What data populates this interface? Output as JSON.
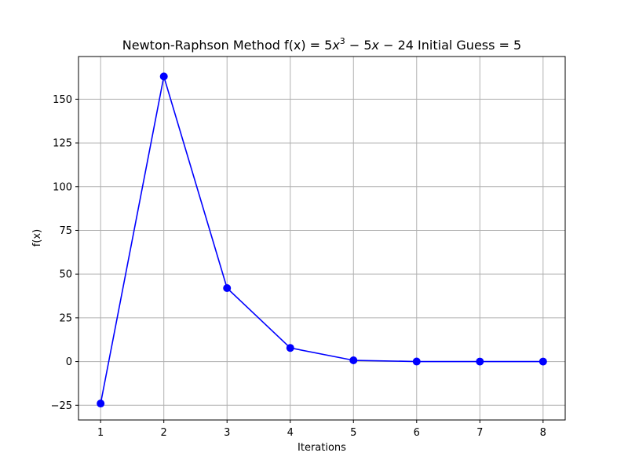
{
  "chart_data": {
    "type": "line",
    "title": {
      "prefix": "Newton-Raphson Method f(x) = 5",
      "var1": "x",
      "exp": "3",
      "middle": " − 5",
      "var2": "x",
      "suffix": " − 24 Initial Guess = 5"
    },
    "xlabel": "Iterations",
    "ylabel": "f(x)",
    "x": [
      1,
      2,
      3,
      4,
      5,
      6,
      7,
      8
    ],
    "series": [
      {
        "values": [
          -24,
          163,
          42,
          7.8,
          0.7,
          0.02,
          0.0,
          0.0
        ],
        "color": "#0000ff",
        "marker": "circle"
      }
    ],
    "xlim": [
      0.65,
      8.35
    ],
    "ylim": [
      -33.4,
      174.4
    ],
    "xticks": [
      1,
      2,
      3,
      4,
      5,
      6,
      7,
      8
    ],
    "yticks": [
      -25,
      0,
      25,
      50,
      75,
      100,
      125,
      150
    ],
    "ytick_labels": [
      "−25",
      "0",
      "25",
      "50",
      "75",
      "100",
      "125",
      "150"
    ],
    "grid": true,
    "grid_color": "#b0b0b0"
  }
}
